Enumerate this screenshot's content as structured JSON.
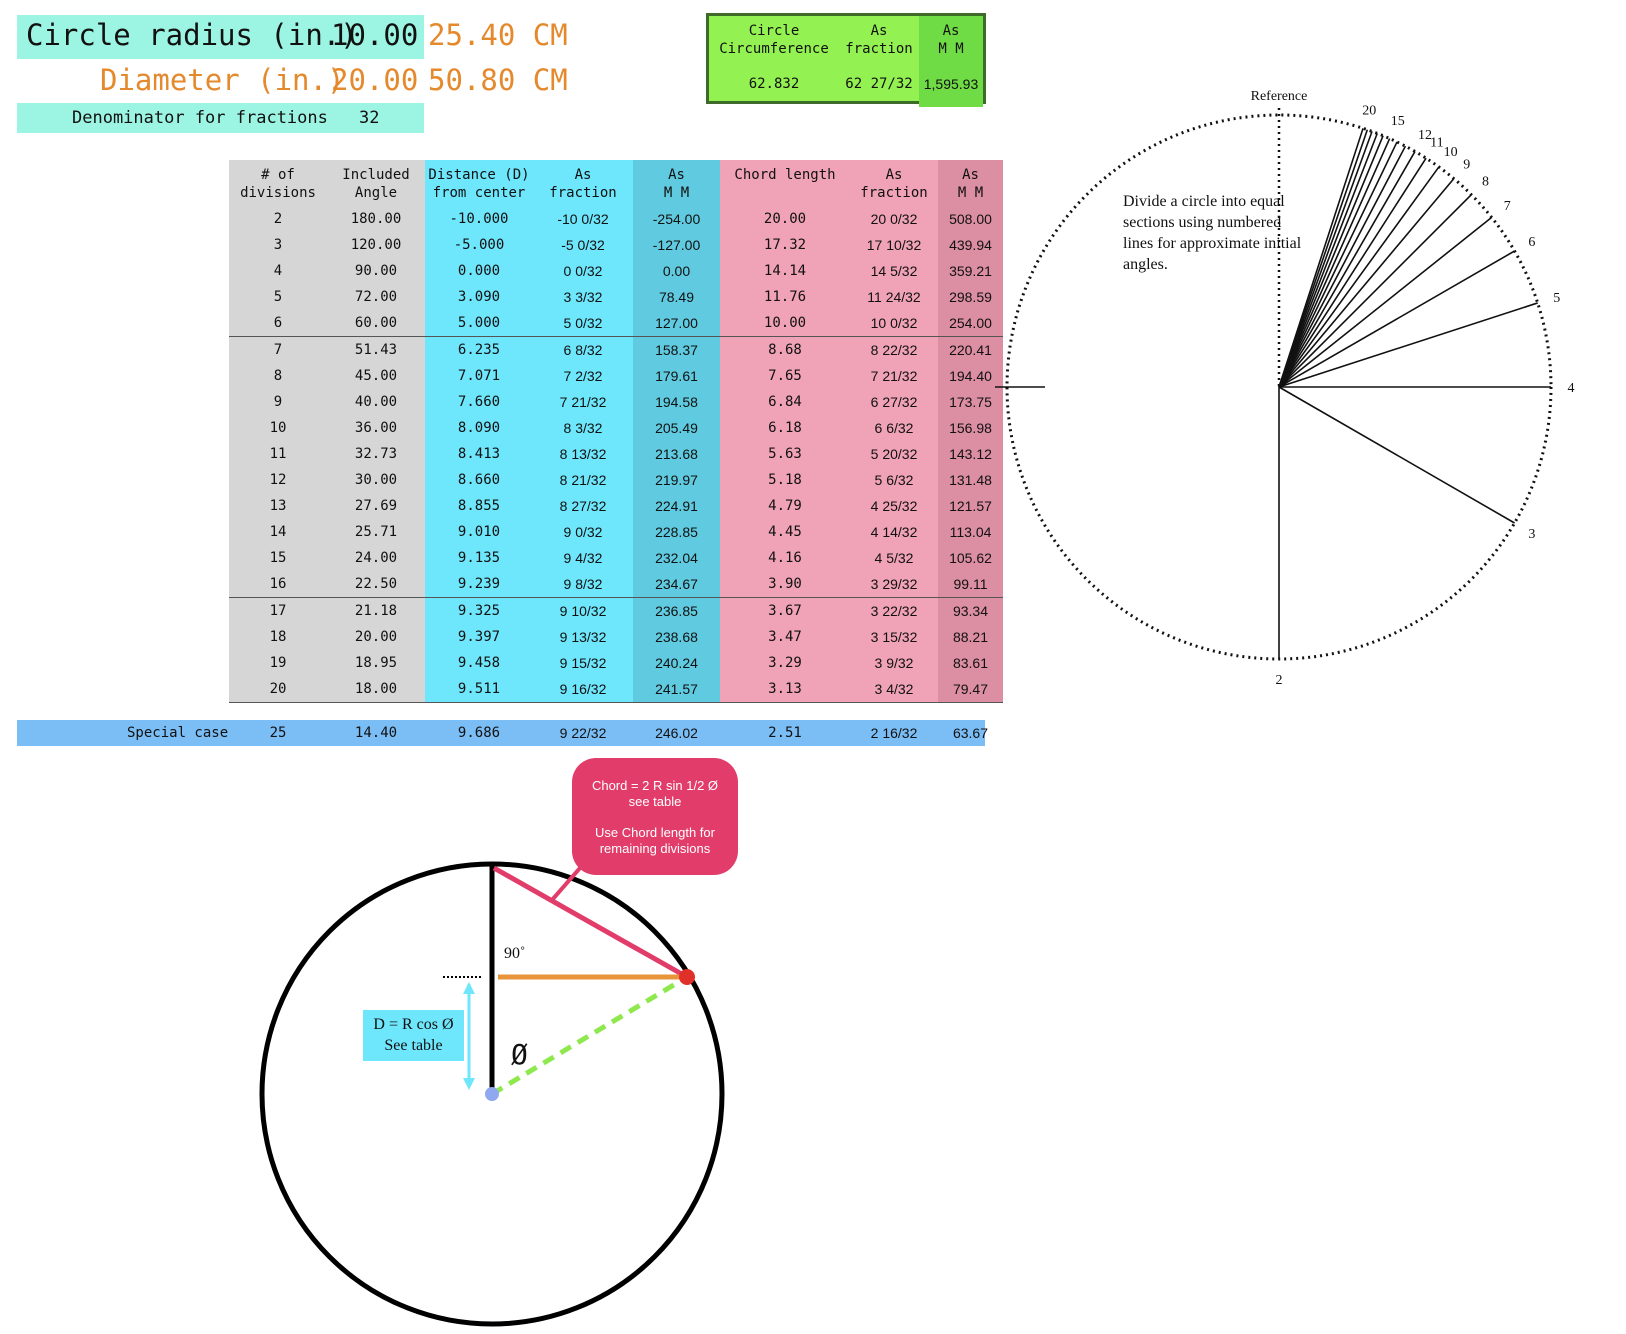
{
  "header": {
    "radius_label": "Circle radius (in.)",
    "radius_value": "10.00",
    "radius_cm": "25.40 CM",
    "diameter_label": "Diameter (in.)",
    "diameter_value": "20.00",
    "diameter_cm": "50.80 CM",
    "denominator_label": "Denominator for fractions",
    "denominator_value": "32"
  },
  "circumference": {
    "col1_header": [
      "Circle",
      "Circumference"
    ],
    "col2_header": [
      "As",
      "fraction"
    ],
    "col3_header": [
      "As",
      "M M"
    ],
    "circumference": "62.832",
    "fraction": "62 27/32",
    "mm": "1,595.93"
  },
  "table": {
    "headers": [
      [
        "# of",
        "divisions"
      ],
      [
        "Included",
        "Angle"
      ],
      [
        "Distance (D)",
        "from center"
      ],
      [
        "As",
        "fraction"
      ],
      [
        "As",
        "M M"
      ],
      [
        "",
        "Chord length"
      ],
      [
        "As",
        "fraction"
      ],
      [
        "As",
        "M M"
      ]
    ],
    "rows": [
      [
        "2",
        "180.00",
        "-10.000",
        "-10 0/32",
        "-254.00",
        "20.00",
        "20 0/32",
        "508.00"
      ],
      [
        "3",
        "120.00",
        "-5.000",
        "-5 0/32",
        "-127.00",
        "17.32",
        "17 10/32",
        "439.94"
      ],
      [
        "4",
        "90.00",
        "0.000",
        "0 0/32",
        "0.00",
        "14.14",
        "14 5/32",
        "359.21"
      ],
      [
        "5",
        "72.00",
        "3.090",
        "3 3/32",
        "78.49",
        "11.76",
        "11 24/32",
        "298.59"
      ],
      [
        "6",
        "60.00",
        "5.000",
        "5 0/32",
        "127.00",
        "10.00",
        "10 0/32",
        "254.00"
      ],
      [
        "7",
        "51.43",
        "6.235",
        "6 8/32",
        "158.37",
        "8.68",
        "8 22/32",
        "220.41"
      ],
      [
        "8",
        "45.00",
        "7.071",
        "7 2/32",
        "179.61",
        "7.65",
        "7 21/32",
        "194.40"
      ],
      [
        "9",
        "40.00",
        "7.660",
        "7 21/32",
        "194.58",
        "6.84",
        "6 27/32",
        "173.75"
      ],
      [
        "10",
        "36.00",
        "8.090",
        "8 3/32",
        "205.49",
        "6.18",
        "6 6/32",
        "156.98"
      ],
      [
        "11",
        "32.73",
        "8.413",
        "8 13/32",
        "213.68",
        "5.63",
        "5 20/32",
        "143.12"
      ],
      [
        "12",
        "30.00",
        "8.660",
        "8 21/32",
        "219.97",
        "5.18",
        "5 6/32",
        "131.48"
      ],
      [
        "13",
        "27.69",
        "8.855",
        "8 27/32",
        "224.91",
        "4.79",
        "4 25/32",
        "121.57"
      ],
      [
        "14",
        "25.71",
        "9.010",
        "9 0/32",
        "228.85",
        "4.45",
        "4 14/32",
        "113.04"
      ],
      [
        "15",
        "24.00",
        "9.135",
        "9 4/32",
        "232.04",
        "4.16",
        "4 5/32",
        "105.62"
      ],
      [
        "16",
        "22.50",
        "9.239",
        "9 8/32",
        "234.67",
        "3.90",
        "3 29/32",
        "99.11"
      ],
      [
        "17",
        "21.18",
        "9.325",
        "9 10/32",
        "236.85",
        "3.67",
        "3 22/32",
        "93.34"
      ],
      [
        "18",
        "20.00",
        "9.397",
        "9 13/32",
        "238.68",
        "3.47",
        "3 15/32",
        "88.21"
      ],
      [
        "19",
        "18.95",
        "9.458",
        "9 15/32",
        "240.24",
        "3.29",
        "3 9/32",
        "83.61"
      ],
      [
        "20",
        "18.00",
        "9.511",
        "9 16/32",
        "241.57",
        "3.13",
        "3 4/32",
        "79.47"
      ]
    ],
    "special_label": "Special case",
    "special_row": [
      "25",
      "14.40",
      "9.686",
      "9 22/32",
      "246.02",
      "2.51",
      "2 16/32",
      "63.67"
    ]
  },
  "reference_diagram": {
    "reference_label": "Reference",
    "note": "Divide a circle into equal sections using numbered lines for approximate initial angles.",
    "ray_divisions": [
      2,
      3,
      4,
      5,
      6,
      7,
      8,
      9,
      10,
      11,
      12,
      13,
      14,
      15,
      16,
      17,
      18,
      19,
      20
    ],
    "labeled_rays": [
      "2",
      "3",
      "4",
      "5",
      "6",
      "7",
      "8",
      "9",
      "10",
      "11",
      "12",
      "15",
      "20"
    ]
  },
  "chord_diagram": {
    "callout_line1": "Chord = 2 R sin 1/2 Ø",
    "callout_line2": "see table",
    "callout_line3": "Use Chord length for",
    "callout_line4": "remaining divisions",
    "d_formula": "D = R cos Ø",
    "d_note": "See table",
    "angle_label": "90˚",
    "phi_symbol": "Ø",
    "colors": {
      "chord": "#e23d6a",
      "distance_line": "#e8943a",
      "radius_dashed": "#8ee84e",
      "center_dot": "#8fa8f0",
      "point_dot": "#e0302a",
      "arrow": "#6ee6fb"
    }
  }
}
